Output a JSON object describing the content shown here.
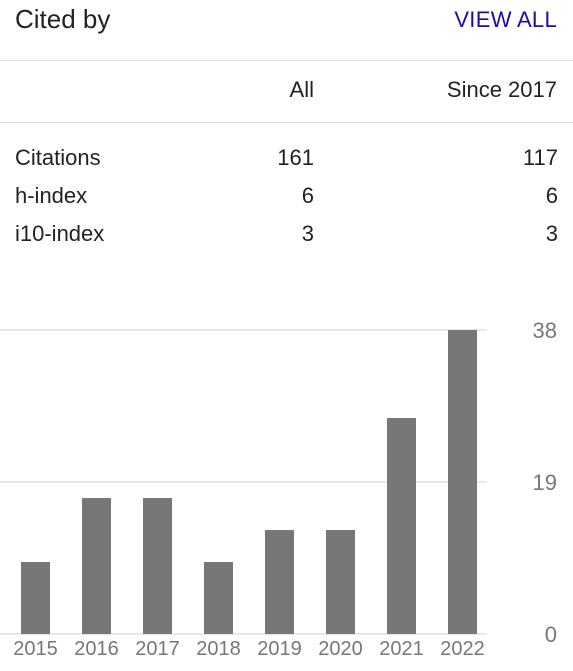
{
  "header": {
    "title": "Cited by",
    "view_all_label": "VIEW ALL"
  },
  "table": {
    "columns": [
      "All",
      "Since 2017"
    ],
    "rows": [
      {
        "label": "Citations",
        "all": "161",
        "since": "117"
      },
      {
        "label": "h-index",
        "all": "6",
        "since": "6"
      },
      {
        "label": "i10-index",
        "all": "3",
        "since": "3"
      }
    ]
  },
  "chart_data": {
    "type": "bar",
    "categories": [
      "2015",
      "2016",
      "2017",
      "2018",
      "2019",
      "2020",
      "2021",
      "2022"
    ],
    "values": [
      9,
      17,
      17,
      9,
      13,
      13,
      27,
      38
    ],
    "yticks": [
      "0",
      "19",
      "38"
    ],
    "ylim": [
      0,
      38
    ],
    "grid": true,
    "bar_color": "#777777"
  }
}
